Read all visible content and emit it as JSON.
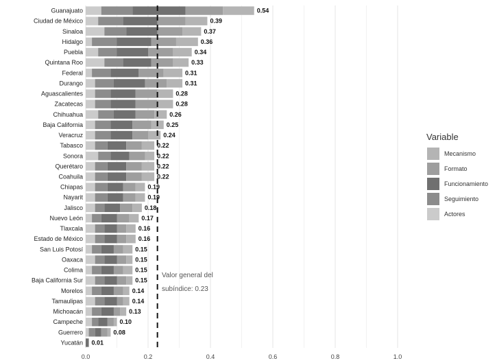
{
  "chart_data": {
    "type": "bar",
    "orientation": "horizontal",
    "stacked": true,
    "categories": [
      "Guanajuato",
      "Ciudad de México",
      "Sinaloa",
      "Hidalgo",
      "Puebla",
      "Quintana Roo",
      "Federal",
      "Durango",
      "Aguascalientes",
      "Zacatecas",
      "Chihuahua",
      "Baja California",
      "Veracruz",
      "Tabasco",
      "Sonora",
      "Querétaro",
      "Coahuila",
      "Chiapas",
      "Nayarit",
      "Jalisco",
      "Nuevo León",
      "Tlaxcala",
      "Estado de México",
      "San Luis Potosí",
      "Oaxaca",
      "Colima",
      "Baja California Sur",
      "Morelos",
      "Tamaulipas",
      "Michoacán",
      "Campeche",
      "Guerrero",
      "Yucatán"
    ],
    "totals": [
      0.54,
      0.39,
      0.37,
      0.36,
      0.34,
      0.33,
      0.31,
      0.31,
      0.28,
      0.28,
      0.26,
      0.25,
      0.24,
      0.22,
      0.22,
      0.22,
      0.22,
      0.19,
      0.19,
      0.18,
      0.17,
      0.16,
      0.16,
      0.15,
      0.15,
      0.15,
      0.15,
      0.14,
      0.14,
      0.13,
      0.1,
      0.08,
      0.01
    ],
    "total_labels": [
      "0.54",
      "0.39",
      "0.37",
      "0.36",
      "0.34",
      "0.33",
      "0.31",
      "0.31",
      "0.28",
      "0.28",
      "0.26",
      "0.25",
      "0.24",
      "0.22",
      "0.22",
      "0.22",
      "0.22",
      "0.19",
      "0.19",
      "0.18",
      "0.17",
      "0.16",
      "0.16",
      "0.15",
      "0.15",
      "0.15",
      "0.15",
      "0.14",
      "0.14",
      "0.13",
      "0.10",
      "0.08",
      "0.01"
    ],
    "series": [
      {
        "name": "Actores",
        "color": "#cbcbcb",
        "values": [
          0.05,
          0.04,
          0.06,
          0.02,
          0.04,
          0.06,
          0.02,
          0.03,
          0.03,
          0.03,
          0.04,
          0.03,
          0.03,
          0.03,
          0.04,
          0.03,
          0.03,
          0.03,
          0.03,
          0.03,
          0.02,
          0.03,
          0.03,
          0.02,
          0.03,
          0.02,
          0.03,
          0.02,
          0.03,
          0.02,
          0.02,
          0.01,
          0.0
        ]
      },
      {
        "name": "Seguimiento",
        "color": "#8c8c8c",
        "values": [
          0.1,
          0.08,
          0.07,
          0.08,
          0.06,
          0.06,
          0.06,
          0.06,
          0.05,
          0.05,
          0.05,
          0.05,
          0.05,
          0.04,
          0.04,
          0.04,
          0.04,
          0.04,
          0.04,
          0.03,
          0.03,
          0.03,
          0.03,
          0.03,
          0.03,
          0.03,
          0.03,
          0.03,
          0.03,
          0.03,
          0.02,
          0.02,
          0.0
        ]
      },
      {
        "name": "Funcionamiento",
        "color": "#707070",
        "values": [
          0.17,
          0.11,
          0.1,
          0.11,
          0.1,
          0.09,
          0.09,
          0.1,
          0.08,
          0.08,
          0.07,
          0.07,
          0.07,
          0.06,
          0.06,
          0.06,
          0.06,
          0.05,
          0.05,
          0.05,
          0.05,
          0.04,
          0.04,
          0.04,
          0.04,
          0.04,
          0.04,
          0.04,
          0.04,
          0.04,
          0.03,
          0.02,
          0.01
        ]
      },
      {
        "name": "Formato",
        "color": "#9e9e9e",
        "values": [
          0.12,
          0.09,
          0.08,
          0.08,
          0.08,
          0.07,
          0.08,
          0.07,
          0.07,
          0.07,
          0.06,
          0.06,
          0.05,
          0.05,
          0.05,
          0.05,
          0.05,
          0.04,
          0.04,
          0.04,
          0.04,
          0.03,
          0.03,
          0.03,
          0.03,
          0.03,
          0.03,
          0.03,
          0.02,
          0.02,
          0.02,
          0.02,
          0.0
        ]
      },
      {
        "name": "Mecanismo",
        "color": "#b4b4b4",
        "values": [
          0.1,
          0.07,
          0.06,
          0.07,
          0.06,
          0.05,
          0.06,
          0.05,
          0.05,
          0.05,
          0.04,
          0.04,
          0.04,
          0.04,
          0.03,
          0.04,
          0.04,
          0.03,
          0.03,
          0.03,
          0.03,
          0.03,
          0.03,
          0.03,
          0.02,
          0.03,
          0.02,
          0.02,
          0.02,
          0.02,
          0.01,
          0.01,
          0.0
        ]
      }
    ],
    "x_ticks": [
      "0.0",
      "0.2",
      "0.4",
      "0.6",
      "0.8",
      "1.0"
    ],
    "xlim": [
      0,
      1.0
    ],
    "grid": true,
    "reference_line": {
      "value": 0.23,
      "style": "dashed"
    },
    "annotation": {
      "line1": "Valor general del",
      "line2": "subíndice: 0.23"
    },
    "legend": {
      "title": "Variable",
      "position": "right",
      "entries": [
        {
          "label": "Mecanismo",
          "color": "#b4b4b4"
        },
        {
          "label": "Formato",
          "color": "#9e9e9e"
        },
        {
          "label": "Funcionamiento",
          "color": "#707070"
        },
        {
          "label": "Seguimiento",
          "color": "#8c8c8c"
        },
        {
          "label": "Actores",
          "color": "#cbcbcb"
        }
      ]
    }
  }
}
